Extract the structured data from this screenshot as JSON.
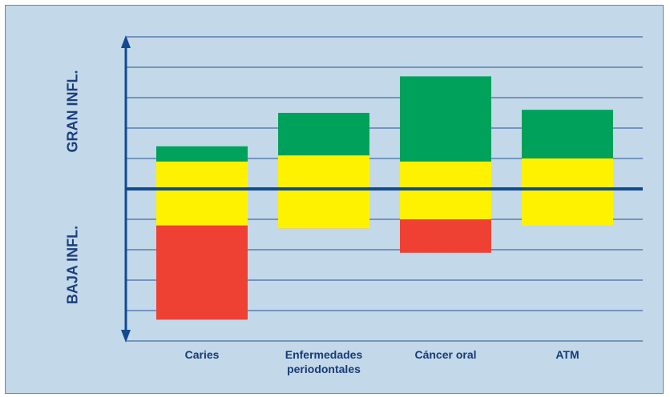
{
  "chart_data": {
    "type": "bar",
    "stacked": true,
    "categories": [
      "Caries",
      "Enfermedades periodontales",
      "Cáncer oral",
      "ATM"
    ],
    "category_labels": [
      [
        "Caries"
      ],
      [
        "Enfermedades",
        "periodontales"
      ],
      [
        "Cáncer oral"
      ],
      [
        "ATM"
      ]
    ],
    "ylim": [
      -5,
      5
    ],
    "baseline": 0,
    "segments": [
      {
        "color": "#ef4034",
        "from": [
          -4.3,
          -1.2,
          -2.1,
          -1.2
        ],
        "to": [
          -1.2,
          -1.3,
          -1.0,
          -1.2
        ]
      },
      {
        "color": "#fff200",
        "from": [
          -1.2,
          -1.3,
          -1.0,
          -1.2
        ],
        "to": [
          0.9,
          1.1,
          0.9,
          1.0
        ]
      },
      {
        "color": "#00a15a",
        "from": [
          0.9,
          1.1,
          0.9,
          1.0
        ],
        "to": [
          1.4,
          2.5,
          3.7,
          2.6
        ]
      }
    ],
    "y_side_labels": {
      "upper": "GRAN INFL.",
      "lower": "BAJA INFL."
    },
    "grid": true
  },
  "colors": {
    "background": "#c3d8e8",
    "grid": "#5b7fb0",
    "axis": "#124a8f",
    "text": "#163b78"
  }
}
